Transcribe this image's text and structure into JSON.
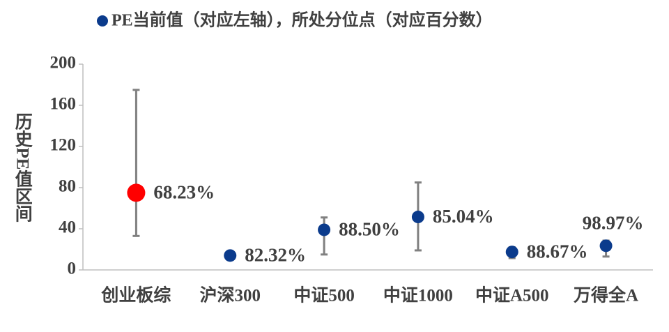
{
  "chart_data": {
    "type": "range_scatter",
    "y_label": "历史PE值区间",
    "categories": [
      "创业板综",
      "沪深300",
      "中证500",
      "中证1000",
      "中证A500",
      "万得全A"
    ],
    "series": [
      {
        "name": "PE当前值（对应左轴），所处分位点（对应百分数）",
        "color": "#0b3b8c",
        "values": [
          75,
          14,
          39,
          51.5,
          17.5,
          23.5
        ],
        "low": [
          33,
          12,
          15,
          19,
          11.5,
          13
        ],
        "high": [
          175,
          16,
          51,
          85,
          22,
          28.5
        ],
        "point_colors": [
          "#ff0000",
          "#0b3b8c",
          "#0b3b8c",
          "#0b3b8c",
          "#0b3b8c",
          "#0b3b8c"
        ],
        "percentile_labels": [
          "68.23%",
          "82.32%",
          "88.50%",
          "85.04%",
          "88.67%",
          "98.97%"
        ]
      }
    ],
    "error_color": "#808080",
    "ylim": [
      0,
      200
    ],
    "yticks": [
      0,
      40,
      80,
      120,
      160,
      200
    ]
  }
}
